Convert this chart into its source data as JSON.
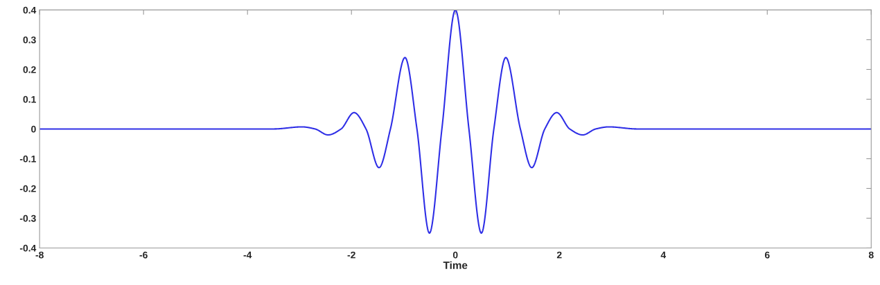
{
  "chart_data": {
    "type": "line",
    "xlabel": "Time",
    "xlim": [
      -8,
      8
    ],
    "ylim": [
      -0.4,
      0.4
    ],
    "xticks": [
      -8,
      -6,
      -4,
      -2,
      0,
      2,
      4,
      6,
      8
    ],
    "yticks": [
      -0.4,
      -0.3,
      -0.2,
      -0.1,
      0,
      0.1,
      0.2,
      0.3,
      0.4
    ],
    "grid": false,
    "marker": "none",
    "line_style": "solid",
    "series": [
      {
        "color": "#2e2ee6",
        "x": [
          -8,
          -3.5,
          -2.95,
          -2.7,
          -2.45,
          -2.2,
          -1.95,
          -1.72,
          -1.47,
          -1.25,
          -0.97,
          -0.74,
          -0.5,
          -0.26,
          0,
          0.26,
          0.5,
          0.74,
          0.97,
          1.25,
          1.47,
          1.72,
          1.95,
          2.2,
          2.45,
          2.7,
          2.95,
          3.5,
          8
        ],
        "values": [
          0,
          0,
          0.007,
          0,
          -0.02,
          0,
          0.055,
          0,
          -0.13,
          0,
          0.24,
          0,
          -0.35,
          0,
          0.4,
          0,
          -0.35,
          0,
          0.24,
          0,
          -0.13,
          0,
          0.055,
          0,
          -0.02,
          0,
          0.007,
          0,
          0
        ]
      }
    ]
  }
}
